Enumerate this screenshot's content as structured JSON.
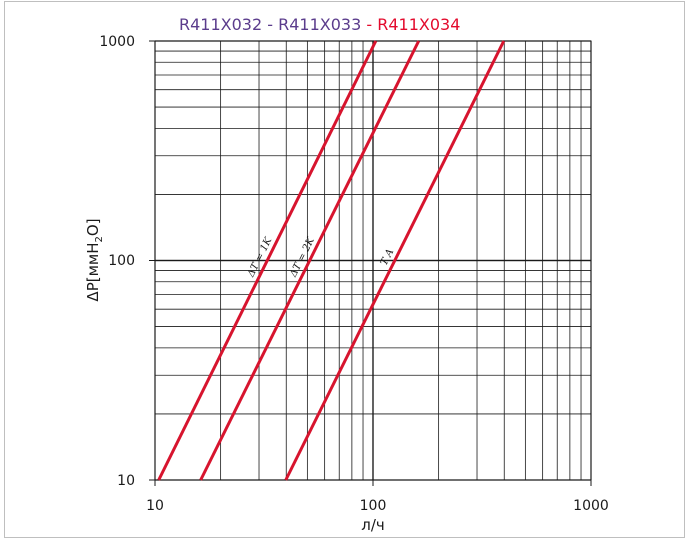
{
  "chart_data": {
    "type": "line",
    "title_parts": [
      {
        "text": "R411X032",
        "color": "#5b3c8c"
      },
      {
        "text": " - ",
        "color": "#5b3c8c"
      },
      {
        "text": "R411X033",
        "color": "#5b3c8c"
      },
      {
        "text": " - ",
        "color": "#e30b2d"
      },
      {
        "text": "R411X034",
        "color": "#e30b2d"
      }
    ],
    "xlabel": "л/ч",
    "ylabel_main": "ΔP[ммH",
    "ylabel_sub": "2",
    "ylabel_end": "O]",
    "xscale": "log",
    "yscale": "log",
    "xlim": [
      10,
      1000
    ],
    "ylim": [
      10,
      1000
    ],
    "x_ticks": [
      "10",
      "100",
      "1000"
    ],
    "y_ticks": [
      "10",
      "100",
      "1000"
    ],
    "grid": true,
    "series": [
      {
        "name": "ΔT = 1K",
        "color": "#d7142e",
        "x": [
          10.4,
          103
        ],
        "y": [
          10,
          1000
        ]
      },
      {
        "name": "ΔT = 2K",
        "color": "#d7142e",
        "x": [
          16.2,
          162
        ],
        "y": [
          10,
          1000
        ]
      },
      {
        "name": "T A",
        "color": "#d7142e",
        "x": [
          39.8,
          398
        ],
        "y": [
          10,
          1000
        ]
      }
    ]
  }
}
